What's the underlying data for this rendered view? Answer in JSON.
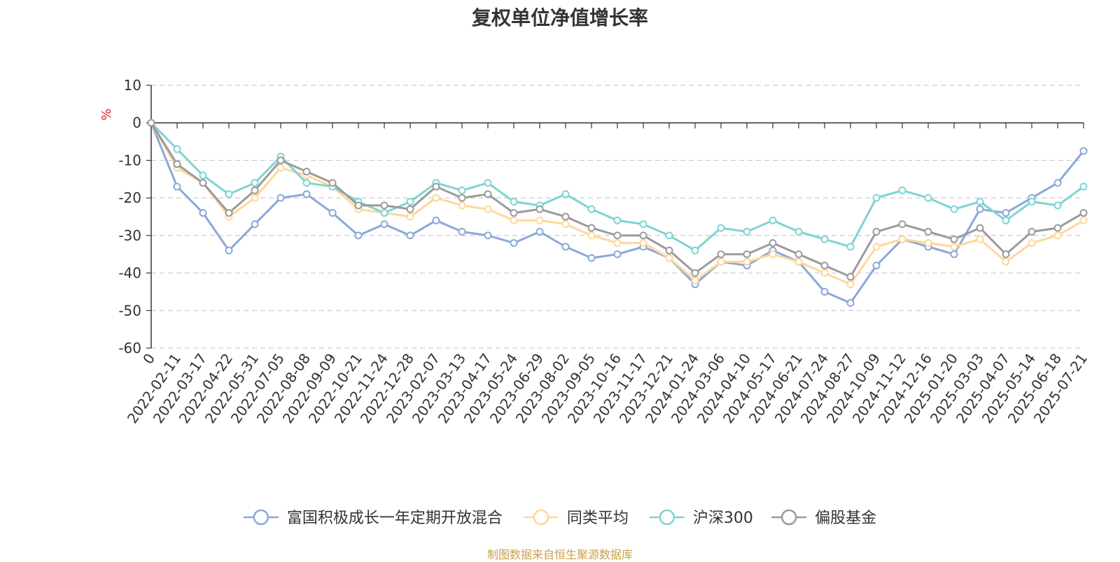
{
  "colors": {
    "series": [
      "#8ba8d8",
      "#fdd89b",
      "#7fd3d3",
      "#9b9b9b"
    ],
    "axis": "#333333",
    "grid": "#cccccc",
    "unit": "#e02020",
    "source": "#c8a14a"
  },
  "source_note": "制图数据来自恒生聚源数据库",
  "chart_data": {
    "type": "line",
    "title": "复权单位净值增长率",
    "ylabel": "%",
    "ylim": [
      -60,
      10
    ],
    "yticks": [
      10,
      0,
      -10,
      -20,
      -30,
      -40,
      -50,
      -60
    ],
    "grid": true,
    "legend_position": "bottom",
    "x": [
      "0",
      "2022-02-11",
      "2022-03-17",
      "2022-04-22",
      "2022-05-31",
      "2022-07-05",
      "2022-08-08",
      "2022-09-09",
      "2022-10-21",
      "2022-11-24",
      "2022-12-28",
      "2023-02-07",
      "2023-03-13",
      "2023-04-17",
      "2023-05-24",
      "2023-06-29",
      "2023-08-02",
      "2023-09-05",
      "2023-10-16",
      "2023-11-17",
      "2023-12-21",
      "2024-01-24",
      "2024-03-06",
      "2024-04-10",
      "2024-05-17",
      "2024-06-21",
      "2024-07-24",
      "2024-08-27",
      "2024-10-09",
      "2024-11-12",
      "2024-12-16",
      "2025-01-20",
      "2025-03-03",
      "2025-04-07",
      "2025-05-14",
      "2025-06-18",
      "2025-07-21"
    ],
    "series": [
      {
        "name": "富国积极成长一年定期开放混合",
        "values": [
          0,
          -17,
          -24,
          -34,
          -27,
          -20,
          -19,
          -24,
          -30,
          -27,
          -30,
          -26,
          -29,
          -30,
          -32,
          -29,
          -33,
          -36,
          -35,
          -33,
          -36,
          -43,
          -37,
          -38,
          -34,
          -37,
          -45,
          -48,
          -38,
          -31,
          -33,
          -35,
          -23,
          -24,
          -20,
          -16,
          -7.5
        ]
      },
      {
        "name": "同类平均",
        "values": [
          0,
          -12,
          -16,
          -25,
          -20,
          -12,
          -14,
          -17,
          -23,
          -24,
          -25,
          -20,
          -22,
          -23,
          -26,
          -26,
          -27,
          -30,
          -32,
          -32,
          -36,
          -42,
          -37,
          -37,
          -35,
          -37,
          -40,
          -43,
          -33,
          -31,
          -32,
          -33,
          -31,
          -37,
          -32,
          -30,
          -26
        ]
      },
      {
        "name": "沪深300",
        "values": [
          0,
          -7,
          -14,
          -19,
          -16,
          -9,
          -16,
          -17,
          -21,
          -24,
          -21,
          -16,
          -18,
          -16,
          -21,
          -22,
          -19,
          -23,
          -26,
          -27,
          -30,
          -34,
          -28,
          -29,
          -26,
          -29,
          -31,
          -33,
          -20,
          -18,
          -20,
          -23,
          -21,
          -26,
          -21,
          -22,
          -17
        ]
      },
      {
        "name": "偏股基金",
        "values": [
          0,
          -11,
          -16,
          -24,
          -18,
          -10,
          -13,
          -16,
          -22,
          -22,
          -23,
          -17,
          -20,
          -19,
          -24,
          -23,
          -25,
          -28,
          -30,
          -30,
          -34,
          -40,
          -35,
          -35,
          -32,
          -35,
          -38,
          -41,
          -29,
          -27,
          -29,
          -31,
          -28,
          -35,
          -29,
          -28,
          -24
        ]
      }
    ]
  }
}
